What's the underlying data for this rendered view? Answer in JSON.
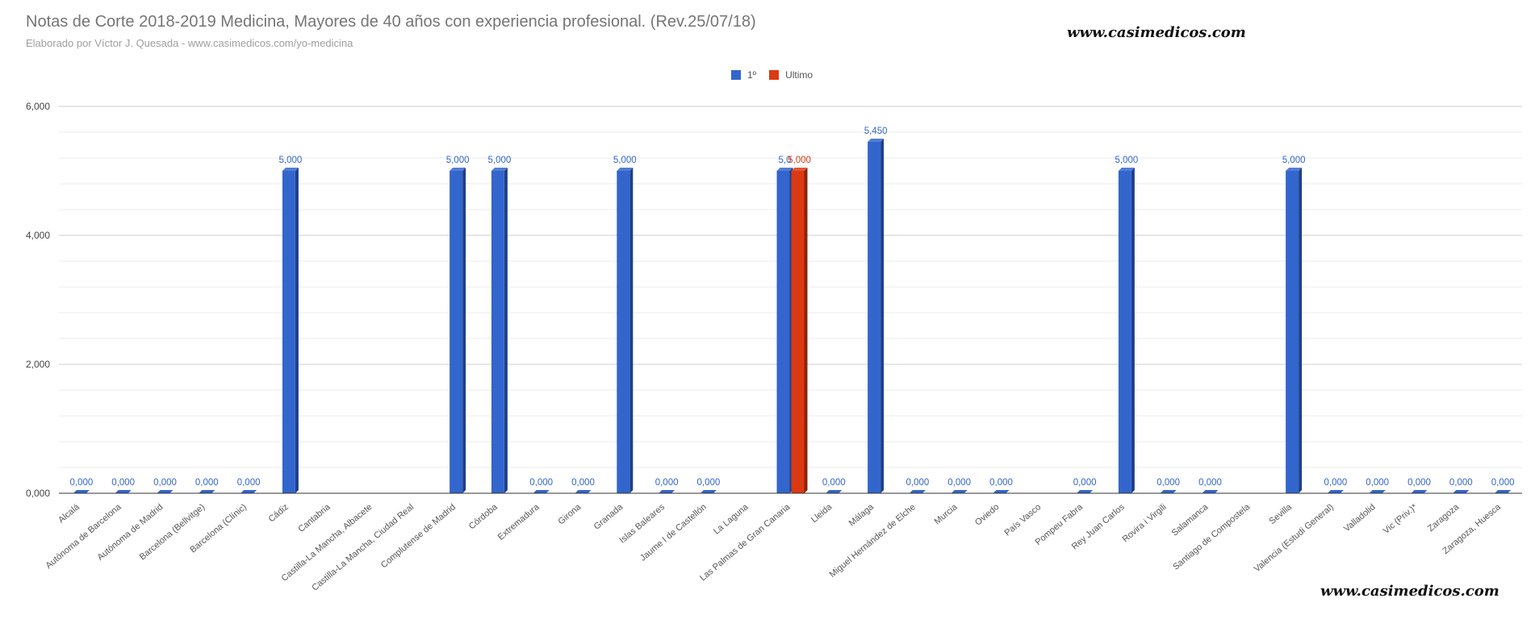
{
  "chart_data": {
    "type": "bar",
    "title": "Notas de Corte 2018-2019 Medicina, Mayores de 40 años con experiencia profesional. (Rev.25/07/18)",
    "subtitle": "Elaborado por Víctor J. Quesada - www.casimedicos.com/yo-medicina",
    "watermarks": [
      "www.casimedicos.com",
      "www.casimedicos.com"
    ],
    "xlabel": "",
    "ylabel": "",
    "ylim": [
      0,
      6
    ],
    "y_ticks": [
      {
        "value": 0,
        "label": "0,000"
      },
      {
        "value": 2,
        "label": "2,000"
      },
      {
        "value": 4,
        "label": "4,000"
      },
      {
        "value": 6,
        "label": "6,000"
      }
    ],
    "grid": true,
    "legend_position": "top",
    "categories": [
      "Alcalá",
      "Autónoma de Barcelona",
      "Autónoma de Madrid",
      "Barcelona (Bellvitge)",
      "Barcelona (Clínic)",
      "Cádiz",
      "Cantabria",
      "Castilla-La Mancha, Albacete",
      "Castilla-La Mancha, Ciudad Real",
      "Complutense de Madrid",
      "Córdoba",
      "Extremadura",
      "Girona",
      "Granada",
      "Islas Baleares",
      "Jaume I de Castellón",
      "La Laguna",
      "Las Palmas de Gran Canaria",
      "Lleida",
      "Málaga",
      "Miguel Hernández de Elche",
      "Murcia",
      "Oviedo",
      "País Vasco",
      "Pompeu Fabra",
      "Rey Juan Carlos",
      "Rovira i Virgili",
      "Salamanca",
      "Santiago de Compostela",
      "Sevilla",
      "Valencia (Estudi General)",
      "Valladolid",
      "Vic (Priv.)*",
      "Zaragoza",
      "Zaragoza, Huesca"
    ],
    "series": [
      {
        "name": "1º",
        "color": "#3366cc",
        "values": [
          0,
          0,
          0,
          0,
          0,
          5,
          null,
          null,
          null,
          5,
          5,
          0,
          0,
          5,
          0,
          0,
          null,
          5,
          0,
          5.45,
          0,
          0,
          0,
          null,
          0,
          5,
          0,
          0,
          null,
          5,
          0,
          0,
          0,
          0,
          0
        ],
        "labels": [
          "0,000",
          "0,000",
          "0,000",
          "0,000",
          "0,000",
          "5,000",
          "",
          "",
          "",
          "5,000",
          "5,000",
          "0,000",
          "0,000",
          "5,000",
          "0,000",
          "0,000",
          "",
          "5,0",
          "0,000",
          "5,450",
          "0,000",
          "0,000",
          "0,000",
          "",
          "0,000",
          "5,000",
          "0,000",
          "0,000",
          "",
          "5,000",
          "0,000",
          "0,000",
          "0,000",
          "0,000",
          "0,000"
        ]
      },
      {
        "name": "Ultimo",
        "color": "#dc3912",
        "values": [
          null,
          null,
          null,
          null,
          null,
          null,
          null,
          null,
          null,
          null,
          null,
          null,
          null,
          null,
          null,
          null,
          null,
          5,
          null,
          null,
          null,
          null,
          null,
          null,
          null,
          null,
          null,
          null,
          null,
          null,
          null,
          null,
          null,
          null,
          null
        ],
        "labels": [
          "",
          "",
          "",
          "",
          "",
          "",
          "",
          "",
          "",
          "",
          "",
          "",
          "",
          "",
          "",
          "",
          "",
          "5,000",
          "",
          "",
          "",
          "",
          "",
          "",
          "",
          "",
          "",
          "",
          "",
          "",
          "",
          "",
          "",
          "",
          ""
        ]
      }
    ]
  }
}
